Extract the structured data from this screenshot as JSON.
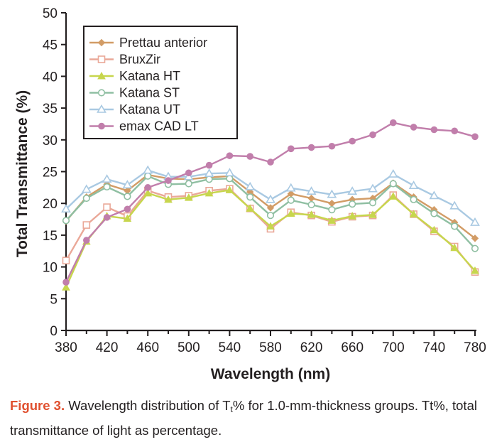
{
  "chart_data": {
    "type": "line",
    "title": "",
    "xlabel": "Wavelength (nm)",
    "ylabel": "Total Transmittance (%)",
    "xlim": [
      380,
      780
    ],
    "ylim": [
      0,
      50
    ],
    "xticks": [
      380,
      420,
      460,
      500,
      540,
      580,
      620,
      660,
      700,
      740,
      780
    ],
    "yticks": [
      0,
      5,
      10,
      15,
      20,
      25,
      30,
      35,
      40,
      45,
      50
    ],
    "x": [
      380,
      400,
      420,
      440,
      460,
      480,
      500,
      520,
      540,
      560,
      580,
      600,
      620,
      640,
      660,
      680,
      700,
      720,
      740,
      760,
      780
    ],
    "legend_position": "top-left",
    "grid": false,
    "series": [
      {
        "name": "Prettau anterior",
        "color": "#d29c66",
        "marker": "diamond",
        "values": [
          17.2,
          21.0,
          23.0,
          22.0,
          24.5,
          23.9,
          23.8,
          24.1,
          24.3,
          21.8,
          19.3,
          21.5,
          20.8,
          20.0,
          20.6,
          20.8,
          23.2,
          21.0,
          19.0,
          17.0,
          14.5
        ]
      },
      {
        "name": "BruxZir",
        "color": "#eaa898",
        "marker": "square-open",
        "values": [
          11.0,
          16.6,
          19.4,
          18.0,
          22.0,
          21.0,
          21.2,
          22.0,
          22.3,
          19.2,
          16.0,
          18.6,
          18.1,
          17.1,
          17.9,
          18.1,
          21.3,
          18.3,
          15.6,
          13.2,
          9.2
        ]
      },
      {
        "name": "Katana HT",
        "color": "#c7d64d",
        "marker": "triangle",
        "values": [
          6.8,
          14.0,
          18.0,
          17.6,
          21.6,
          20.6,
          20.9,
          21.6,
          22.1,
          19.2,
          16.4,
          18.4,
          18.2,
          17.3,
          18.0,
          18.2,
          21.1,
          18.3,
          15.8,
          13.0,
          9.4
        ]
      },
      {
        "name": "Katana ST",
        "color": "#8fbfa2",
        "marker": "circle-open",
        "values": [
          17.3,
          20.8,
          22.6,
          21.1,
          24.3,
          23.0,
          23.1,
          23.8,
          23.9,
          21.0,
          18.1,
          20.5,
          19.8,
          19.0,
          19.9,
          20.1,
          23.1,
          20.6,
          18.4,
          16.4,
          12.9
        ]
      },
      {
        "name": "Katana UT",
        "color": "#a9c9e2",
        "marker": "triangle-open",
        "values": [
          19.1,
          22.2,
          23.8,
          22.9,
          25.2,
          24.2,
          24.2,
          24.7,
          24.8,
          22.6,
          20.6,
          22.4,
          21.9,
          21.4,
          21.9,
          22.3,
          24.6,
          22.8,
          21.2,
          19.6,
          17.0
        ]
      },
      {
        "name": "emax CAD LT",
        "color": "#c17eab",
        "marker": "circle",
        "values": [
          7.6,
          14.2,
          17.8,
          19.1,
          22.5,
          23.6,
          24.8,
          26.0,
          27.5,
          27.4,
          26.5,
          28.6,
          28.8,
          29.0,
          29.8,
          30.8,
          32.7,
          32.0,
          31.6,
          31.4,
          30.5
        ]
      }
    ]
  },
  "caption": {
    "label": "Figure 3.",
    "text_part1": "Wavelength distribution of T",
    "subscript": "t",
    "text_part2": "% for 1.0-mm-thickness groups. Tt%, total transmittance of light as percentage."
  }
}
